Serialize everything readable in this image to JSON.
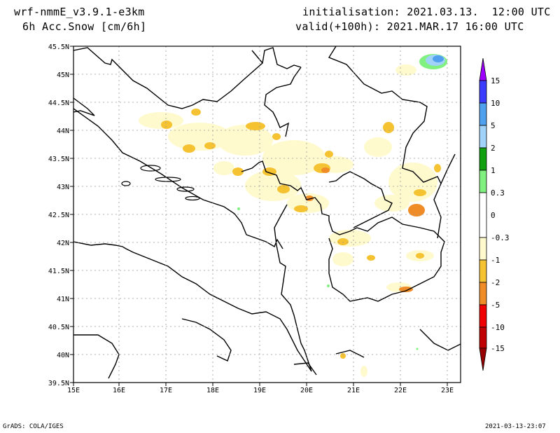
{
  "header": {
    "model": "wrf-nmmE_v3.9.1-e3km",
    "field": "6h Acc.Snow [cm/6h]",
    "init": "initialisation: 2021.03.13.  12:00 UTC",
    "valid": "valid(+100h): 2021.MAR.17 16:00 UTC"
  },
  "map": {
    "lat_labels": [
      "45.5N",
      "45N",
      "44.5N",
      "44N",
      "43.5N",
      "43N",
      "42.5N",
      "42N",
      "41.5N",
      "41N",
      "40.5N",
      "40N",
      "39.5N"
    ],
    "lon_labels": [
      "15E",
      "16E",
      "17E",
      "18E",
      "19E",
      "20E",
      "21E",
      "22E",
      "23E"
    ]
  },
  "legend": {
    "labels": [
      "15",
      "10",
      "5",
      "2",
      "1",
      "0.3",
      "0",
      "-0.3",
      "-1",
      "-2",
      "-5",
      "-10",
      "-15"
    ],
    "colors": [
      "#a000ff",
      "#3c3cff",
      "#50a0f0",
      "#a0d2fa",
      "#10a010",
      "#80f080",
      "#ffffff",
      "#fffacd",
      "#f5c232",
      "#f08c28",
      "#f00000",
      "#c00000",
      "#960000"
    ]
  },
  "footer": {
    "left": "GrADS: COLA/IGES",
    "right": "2021-03-13-23:07"
  }
}
